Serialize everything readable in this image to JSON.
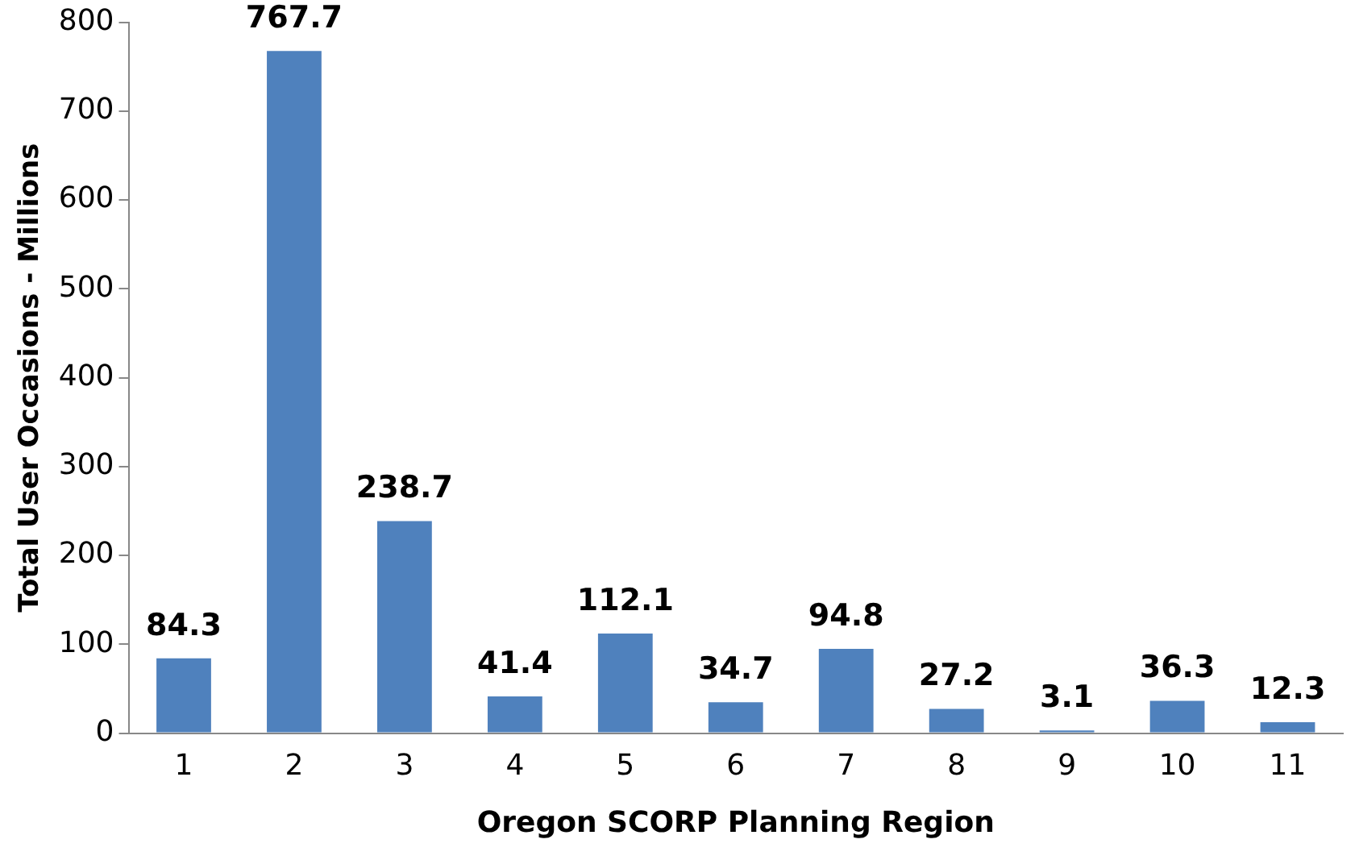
{
  "chart_data": {
    "type": "bar",
    "xlabel": "Oregon SCORP Planning Region",
    "ylabel": "Total User Occasions - Millions",
    "categories": [
      "1",
      "2",
      "3",
      "4",
      "5",
      "6",
      "7",
      "8",
      "9",
      "10",
      "11"
    ],
    "values": [
      84.3,
      767.7,
      238.7,
      41.4,
      112.1,
      34.7,
      94.8,
      27.2,
      3.1,
      36.3,
      12.3
    ],
    "color": "#4f81bd",
    "ylim": [
      0,
      800
    ],
    "yticks": [
      0,
      100,
      200,
      300,
      400,
      500,
      600,
      700,
      800
    ],
    "grid": false,
    "legend": false,
    "data_labels": true
  }
}
